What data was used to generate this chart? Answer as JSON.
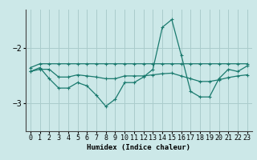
{
  "xlabel": "Humidex (Indice chaleur)",
  "ylabel": "",
  "bg_color": "#cce8e8",
  "grid_color": "#aacccc",
  "line_color": "#1a7a6e",
  "ylim": [
    -3.5,
    -1.3
  ],
  "xlim": [
    -0.5,
    23.5
  ],
  "yticks": [
    -3,
    -2
  ],
  "xticks": [
    0,
    1,
    2,
    3,
    4,
    5,
    6,
    7,
    8,
    9,
    10,
    11,
    12,
    13,
    14,
    15,
    16,
    17,
    18,
    19,
    20,
    21,
    22,
    23
  ],
  "line1_x": [
    0,
    1,
    2,
    3,
    4,
    5,
    6,
    7,
    8,
    9,
    10,
    11,
    12,
    13,
    14,
    15,
    16,
    17,
    18,
    19,
    20,
    21,
    22,
    23
  ],
  "line1_y": [
    -2.35,
    -2.28,
    -2.28,
    -2.28,
    -2.28,
    -2.28,
    -2.28,
    -2.28,
    -2.28,
    -2.28,
    -2.28,
    -2.28,
    -2.28,
    -2.28,
    -2.28,
    -2.28,
    -2.28,
    -2.28,
    -2.28,
    -2.28,
    -2.28,
    -2.28,
    -2.28,
    -2.28
  ],
  "line2_x": [
    0,
    1,
    2,
    3,
    4,
    5,
    6,
    7,
    8,
    9,
    10,
    11,
    12,
    13,
    14,
    15,
    16,
    17,
    18,
    19,
    20,
    21,
    22,
    23
  ],
  "line2_y": [
    -2.42,
    -2.38,
    -2.38,
    -2.52,
    -2.52,
    -2.48,
    -2.5,
    -2.52,
    -2.55,
    -2.55,
    -2.5,
    -2.5,
    -2.5,
    -2.48,
    -2.46,
    -2.45,
    -2.5,
    -2.55,
    -2.6,
    -2.6,
    -2.57,
    -2.53,
    -2.5,
    -2.48
  ],
  "line3_x": [
    0,
    1,
    2,
    3,
    4,
    5,
    6,
    7,
    8,
    9,
    10,
    11,
    12,
    13,
    14,
    15,
    16,
    17,
    18,
    19,
    20,
    21,
    22,
    23
  ],
  "line3_y": [
    -2.42,
    -2.35,
    -2.55,
    -2.72,
    -2.72,
    -2.62,
    -2.68,
    -2.85,
    -3.05,
    -2.92,
    -2.62,
    -2.62,
    -2.52,
    -2.38,
    -1.62,
    -1.48,
    -2.12,
    -2.78,
    -2.88,
    -2.88,
    -2.55,
    -2.38,
    -2.42,
    -2.32
  ]
}
